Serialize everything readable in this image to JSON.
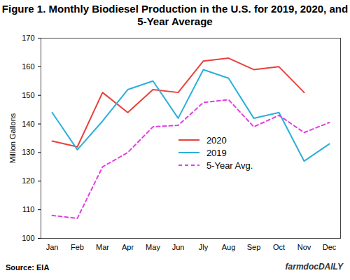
{
  "chart_data": {
    "type": "line",
    "title": "Figure 1. Monthly Biodiesel Production in the U.S. for 2019, 2020, and 5-Year Average",
    "y_label": "Million Gallons",
    "source": "Source: EIA",
    "logo": "farmdocDAILY",
    "categories": [
      "Jan",
      "Feb",
      "Mar",
      "Apr",
      "May",
      "Jun",
      "Jly",
      "Aug",
      "Sep",
      "Oct",
      "Nov",
      "Dec"
    ],
    "series": [
      {
        "name": "2020",
        "color": "#e8413c",
        "line_style": "solid",
        "values": [
          134,
          132,
          151,
          144,
          152,
          151,
          162,
          163,
          159,
          160,
          151,
          null
        ]
      },
      {
        "name": "2019",
        "color": "#2bb0d8",
        "line_style": "solid",
        "values": [
          144,
          131,
          141,
          152,
          155,
          142,
          159,
          156,
          142,
          144,
          127,
          133
        ]
      },
      {
        "name": "5-Year Avg.",
        "color": "#e040e0",
        "line_style": "dashed",
        "values": [
          108,
          107,
          125,
          130,
          139,
          139.5,
          147.5,
          148.5,
          139,
          143,
          137,
          140.5
        ]
      }
    ],
    "ylim": [
      100,
      170
    ],
    "yticks": [
      100,
      110,
      120,
      130,
      140,
      150,
      160,
      170
    ],
    "grid": false,
    "legend": "lower right"
  }
}
